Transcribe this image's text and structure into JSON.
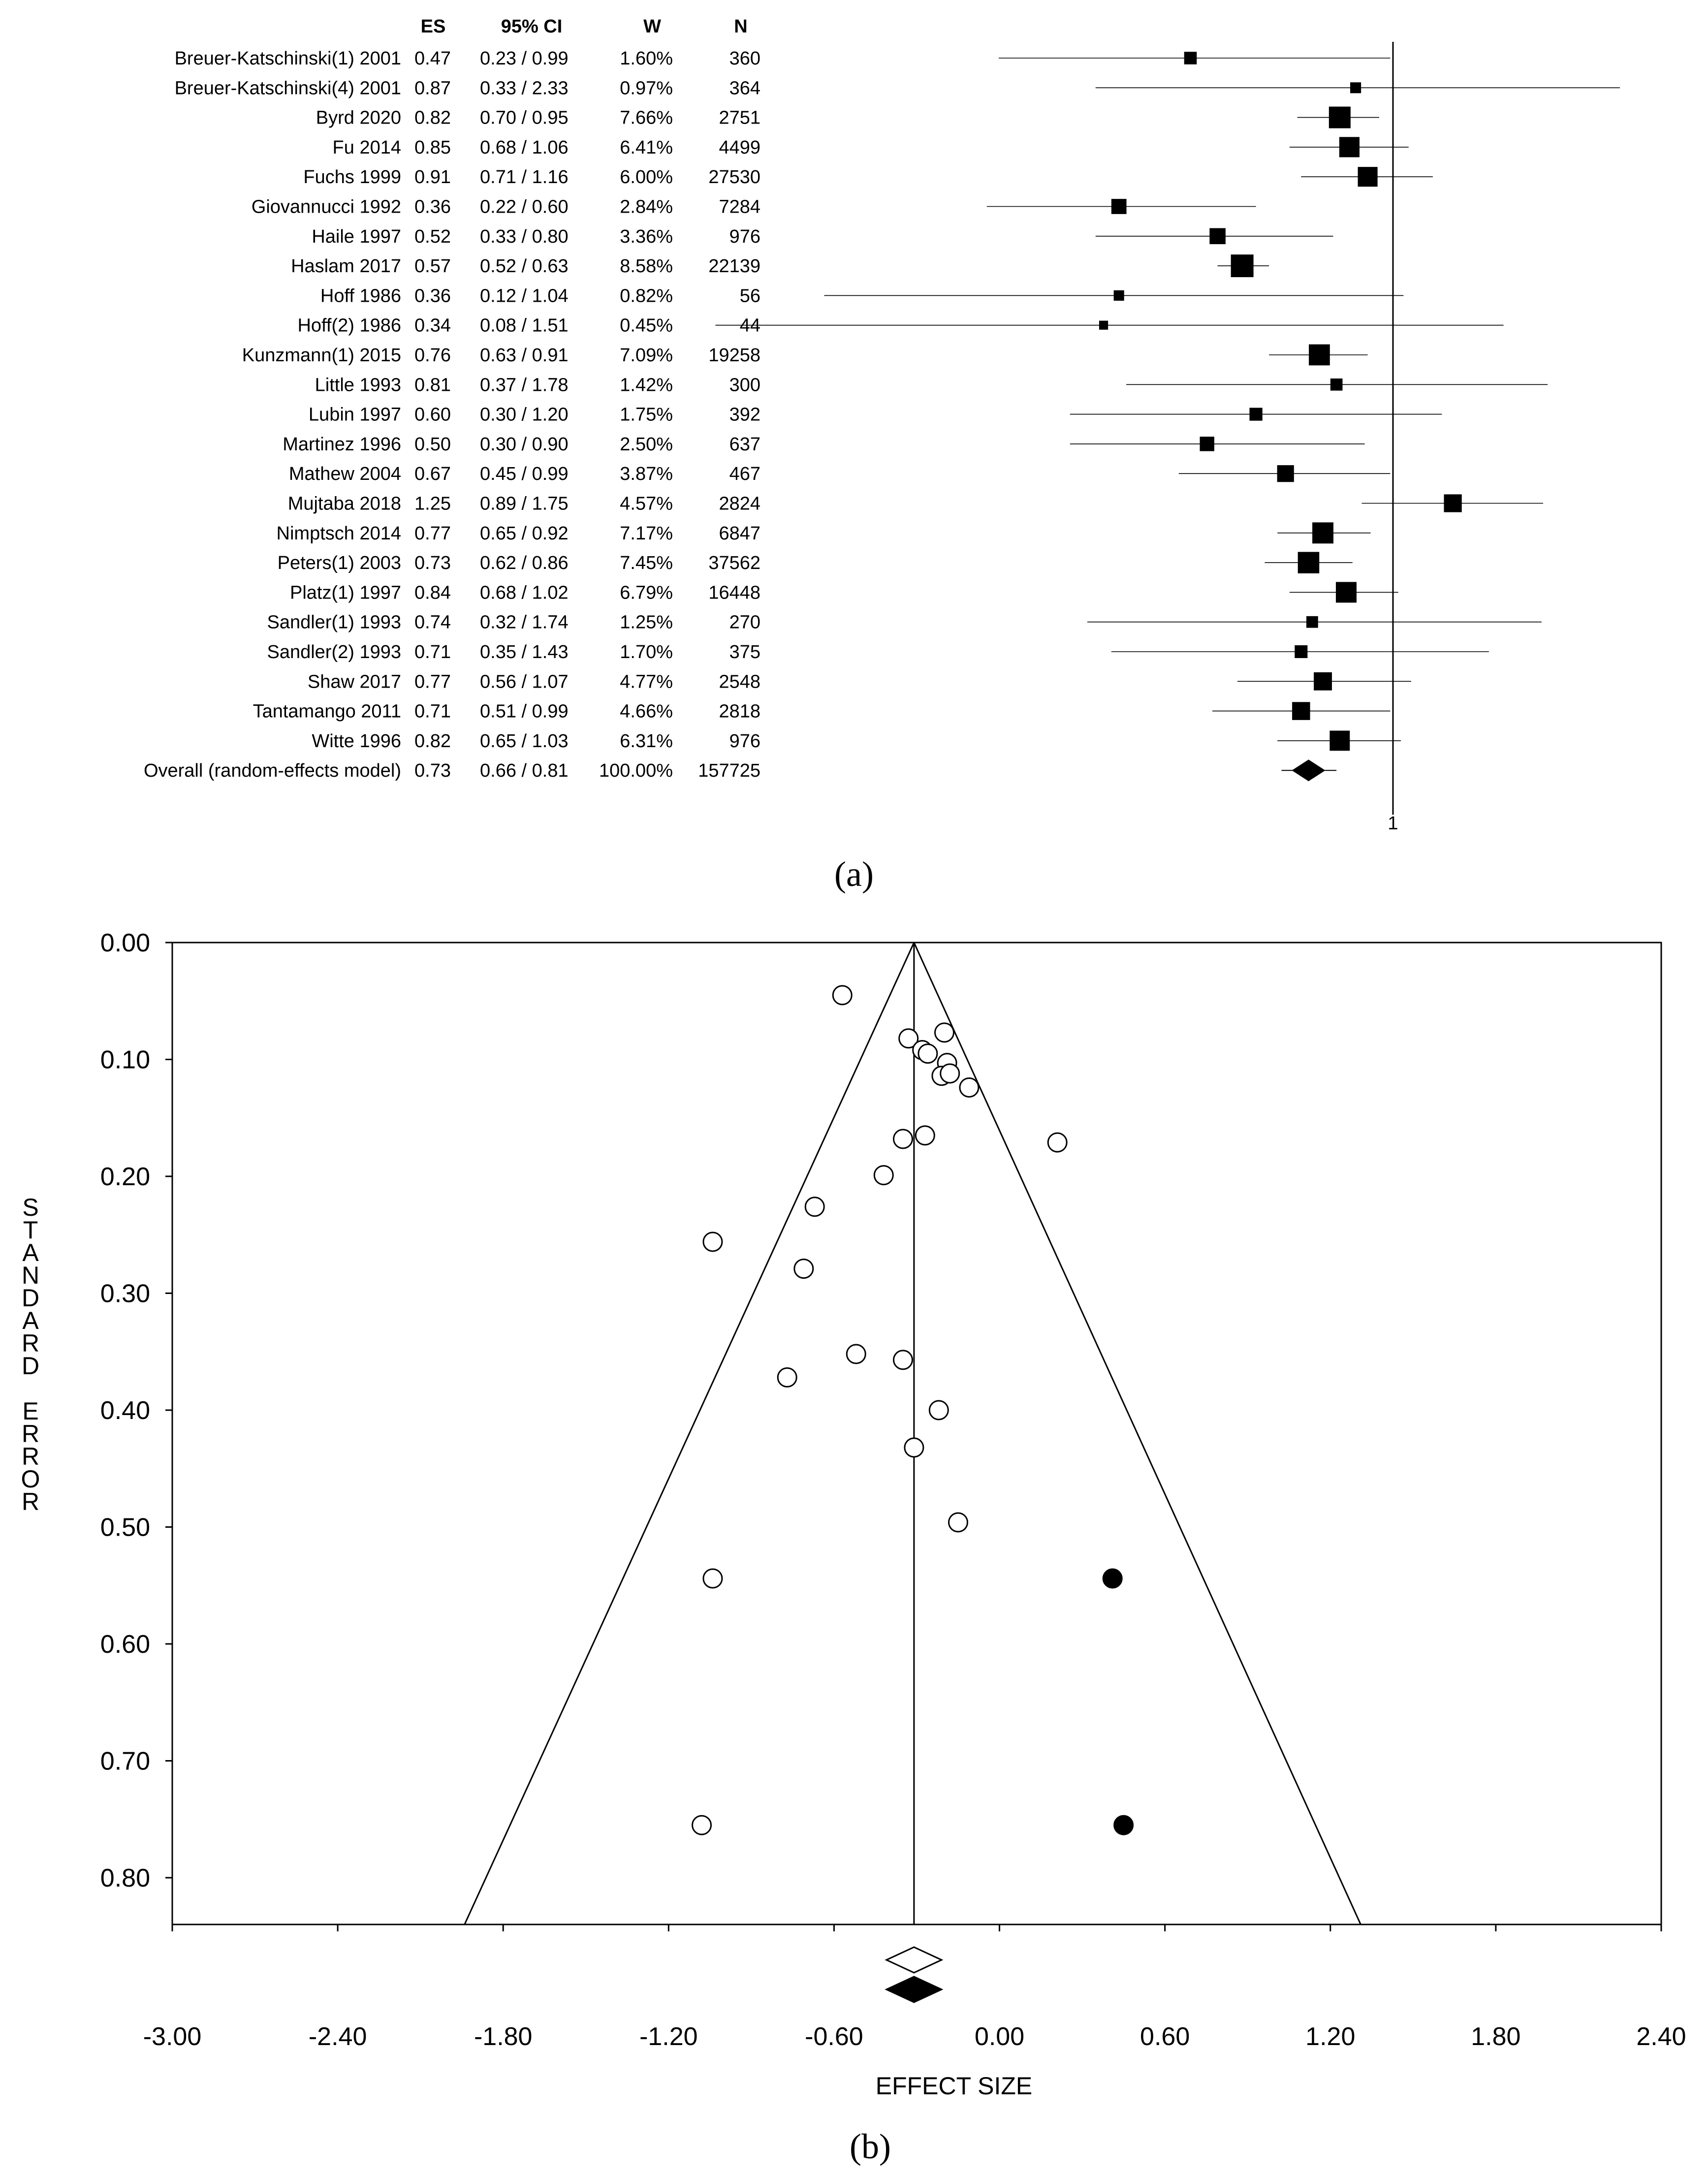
{
  "chart_data": [
    {
      "type": "forest",
      "caption": "(a)",
      "columns": [
        "ES",
        "95% CI",
        "W",
        "N"
      ],
      "reference_label": "1",
      "rows": [
        {
          "study": "Breuer-Katschinski(1) 2001",
          "es": 0.47,
          "ci_text": "0.23 / 0.99",
          "lo": 0.23,
          "hi": 0.99,
          "w": "1.60%",
          "n": "360"
        },
        {
          "study": "Breuer-Katschinski(4) 2001",
          "es": 0.87,
          "ci_text": "0.33 / 2.33",
          "lo": 0.33,
          "hi": 2.33,
          "w": "0.97%",
          "n": "364"
        },
        {
          "study": "Byrd 2020",
          "es": 0.82,
          "ci_text": "0.70 / 0.95",
          "lo": 0.7,
          "hi": 0.95,
          "w": "7.66%",
          "n": "2751"
        },
        {
          "study": "Fu 2014",
          "es": 0.85,
          "ci_text": "0.68 / 1.06",
          "lo": 0.68,
          "hi": 1.06,
          "w": "6.41%",
          "n": "4499"
        },
        {
          "study": "Fuchs 1999",
          "es": 0.91,
          "ci_text": "0.71 / 1.16",
          "lo": 0.71,
          "hi": 1.16,
          "w": "6.00%",
          "n": "27530"
        },
        {
          "study": "Giovannucci 1992",
          "es": 0.36,
          "ci_text": "0.22 / 0.60",
          "lo": 0.22,
          "hi": 0.6,
          "w": "2.84%",
          "n": "7284"
        },
        {
          "study": "Haile 1997",
          "es": 0.52,
          "ci_text": "0.33 / 0.80",
          "lo": 0.33,
          "hi": 0.8,
          "w": "3.36%",
          "n": "976"
        },
        {
          "study": "Haslam 2017",
          "es": 0.57,
          "ci_text": "0.52 / 0.63",
          "lo": 0.52,
          "hi": 0.63,
          "w": "8.58%",
          "n": "22139"
        },
        {
          "study": "Hoff 1986",
          "es": 0.36,
          "ci_text": "0.12 / 1.04",
          "lo": 0.12,
          "hi": 1.04,
          "w": "0.82%",
          "n": "56"
        },
        {
          "study": "Hoff(2) 1986",
          "es": 0.34,
          "ci_text": "0.08 / 1.51",
          "lo": 0.08,
          "hi": 1.51,
          "w": "0.45%",
          "n": "44"
        },
        {
          "study": "Kunzmann(1) 2015",
          "es": 0.76,
          "ci_text": "0.63 / 0.91",
          "lo": 0.63,
          "hi": 0.91,
          "w": "7.09%",
          "n": "19258"
        },
        {
          "study": "Little 1993",
          "es": 0.81,
          "ci_text": "0.37 / 1.78",
          "lo": 0.37,
          "hi": 1.78,
          "w": "1.42%",
          "n": "300"
        },
        {
          "study": "Lubin 1997",
          "es": 0.6,
          "ci_text": "0.30 / 1.20",
          "lo": 0.3,
          "hi": 1.2,
          "w": "1.75%",
          "n": "392"
        },
        {
          "study": "Martinez 1996",
          "es": 0.5,
          "ci_text": "0.30 / 0.90",
          "lo": 0.3,
          "hi": 0.9,
          "w": "2.50%",
          "n": "637"
        },
        {
          "study": "Mathew 2004",
          "es": 0.67,
          "ci_text": "0.45 / 0.99",
          "lo": 0.45,
          "hi": 0.99,
          "w": "3.87%",
          "n": "467"
        },
        {
          "study": "Mujtaba 2018",
          "es": 1.25,
          "ci_text": "0.89 / 1.75",
          "lo": 0.89,
          "hi": 1.75,
          "w": "4.57%",
          "n": "2824"
        },
        {
          "study": "Nimptsch 2014",
          "es": 0.77,
          "ci_text": "0.65 / 0.92",
          "lo": 0.65,
          "hi": 0.92,
          "w": "7.17%",
          "n": "6847"
        },
        {
          "study": "Peters(1) 2003",
          "es": 0.73,
          "ci_text": "0.62 / 0.86",
          "lo": 0.62,
          "hi": 0.86,
          "w": "7.45%",
          "n": "37562"
        },
        {
          "study": "Platz(1) 1997",
          "es": 0.84,
          "ci_text": "0.68 / 1.02",
          "lo": 0.68,
          "hi": 1.02,
          "w": "6.79%",
          "n": "16448"
        },
        {
          "study": "Sandler(1) 1993",
          "es": 0.74,
          "ci_text": "0.32 / 1.74",
          "lo": 0.32,
          "hi": 1.74,
          "w": "1.25%",
          "n": "270"
        },
        {
          "study": "Sandler(2) 1993",
          "es": 0.71,
          "ci_text": "0.35 / 1.43",
          "lo": 0.35,
          "hi": 1.43,
          "w": "1.70%",
          "n": "375"
        },
        {
          "study": "Shaw 2017",
          "es": 0.77,
          "ci_text": "0.56 / 1.07",
          "lo": 0.56,
          "hi": 1.07,
          "w": "4.77%",
          "n": "2548"
        },
        {
          "study": "Tantamango 2011",
          "es": 0.71,
          "ci_text": "0.51 / 0.99",
          "lo": 0.51,
          "hi": 0.99,
          "w": "4.66%",
          "n": "2818"
        },
        {
          "study": "Witte 1996",
          "es": 0.82,
          "ci_text": "0.65 / 1.03",
          "lo": 0.65,
          "hi": 1.03,
          "w": "6.31%",
          "n": "976"
        }
      ],
      "overall": {
        "study": "Overall (random-effects model)",
        "es": 0.73,
        "ci_text": "0.66 / 0.81",
        "lo": 0.66,
        "hi": 0.81,
        "w": "100.00%",
        "n": "157725"
      }
    },
    {
      "type": "scatter",
      "subtype": "funnel",
      "caption": "(b)",
      "xlabel": "EFFECT SIZE",
      "ylabel": "STANDARD ERROR",
      "xlim": [
        -3.0,
        2.4
      ],
      "ylim": [
        0.0,
        0.84
      ],
      "x_ticks": [
        "-3.00",
        "-2.40",
        "-1.80",
        "-1.20",
        "-0.60",
        "0.00",
        "0.60",
        "1.20",
        "1.80",
        "2.40"
      ],
      "y_ticks": [
        "0.00",
        "0.10",
        "0.20",
        "0.30",
        "0.40",
        "0.50",
        "0.60",
        "0.70",
        "0.80"
      ],
      "pooled_effect": -0.31,
      "funnel_apex": {
        "x": -0.31,
        "y": 0.0
      },
      "funnel_base": {
        "y": 0.84,
        "left_x": -1.94,
        "right_x": 1.31
      },
      "observed_points": [
        {
          "x": -0.57,
          "y": 0.045
        },
        {
          "x": -0.33,
          "y": 0.082
        },
        {
          "x": -0.2,
          "y": 0.077
        },
        {
          "x": -0.28,
          "y": 0.092
        },
        {
          "x": -0.26,
          "y": 0.095
        },
        {
          "x": -0.19,
          "y": 0.103
        },
        {
          "x": -0.21,
          "y": 0.114
        },
        {
          "x": -0.18,
          "y": 0.112
        },
        {
          "x": -0.11,
          "y": 0.124
        },
        {
          "x": -0.35,
          "y": 0.168
        },
        {
          "x": -0.27,
          "y": 0.165
        },
        {
          "x": 0.21,
          "y": 0.171
        },
        {
          "x": -0.42,
          "y": 0.199
        },
        {
          "x": -0.67,
          "y": 0.226
        },
        {
          "x": -1.04,
          "y": 0.256
        },
        {
          "x": -0.71,
          "y": 0.279
        },
        {
          "x": -0.52,
          "y": 0.352
        },
        {
          "x": -0.35,
          "y": 0.357
        },
        {
          "x": -0.77,
          "y": 0.372
        },
        {
          "x": -0.22,
          "y": 0.4
        },
        {
          "x": -0.31,
          "y": 0.432
        },
        {
          "x": -0.15,
          "y": 0.496
        },
        {
          "x": -1.04,
          "y": 0.544
        },
        {
          "x": -1.08,
          "y": 0.755
        }
      ],
      "imputed_points": [
        {
          "x": 0.41,
          "y": 0.544
        },
        {
          "x": 0.45,
          "y": 0.755
        }
      ],
      "observed_estimate": -0.31,
      "adjusted_estimate": -0.31
    }
  ]
}
